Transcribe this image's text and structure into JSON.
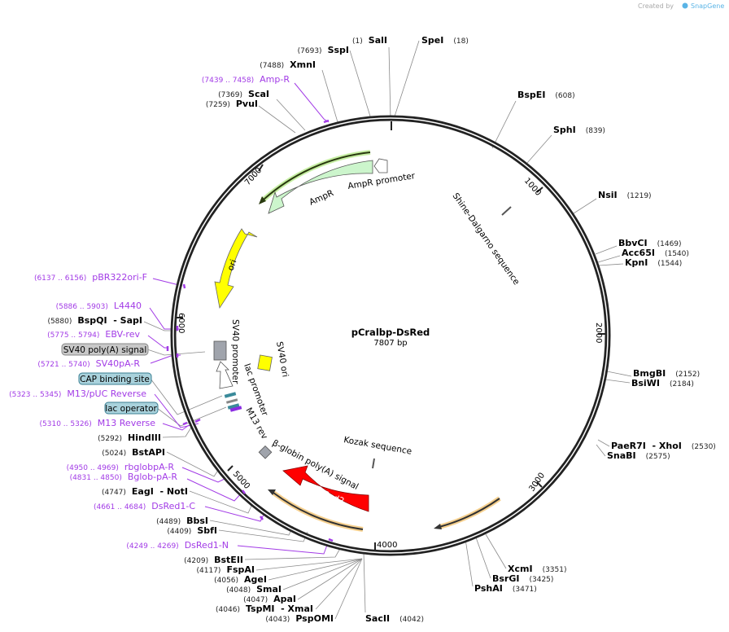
{
  "attribution": {
    "text": "Created by",
    "brand": "SnapGene"
  },
  "plasmid": {
    "name": "pCralbp-DsRed",
    "size": "7807 bp"
  },
  "ticks": [
    "1000",
    "2000",
    "3000",
    "4000",
    "5000",
    "6000",
    "7000"
  ],
  "enzymes": [
    {
      "name": "SalI",
      "position": "(1)"
    },
    {
      "name": "SpeI",
      "position": "(18)"
    },
    {
      "name": "SspI",
      "position": "(7693)"
    },
    {
      "name": "XmnI",
      "position": "(7488)"
    },
    {
      "name": "ScaI",
      "position": "(7369)"
    },
    {
      "name": "PvuI",
      "position": "(7259)"
    },
    {
      "name": "BspEI",
      "position": "(608)"
    },
    {
      "name": "SphI",
      "position": "(839)"
    },
    {
      "name": "NsiI",
      "position": "(1219)"
    },
    {
      "name": "BbvCI",
      "position": "(1469)"
    },
    {
      "name": "Acc65I",
      "position": "(1540)"
    },
    {
      "name": "KpnI",
      "position": "(1544)"
    },
    {
      "name": "BmgBI",
      "position": "(2152)"
    },
    {
      "name": "BsiWI",
      "position": "(2184)"
    },
    {
      "name": "PaeR7I  - XhoI",
      "position": "(2530)"
    },
    {
      "name": "SnaBI",
      "position": "(2575)"
    },
    {
      "name": "XcmI",
      "position": "(3351)"
    },
    {
      "name": "BsrGI",
      "position": "(3425)"
    },
    {
      "name": "PshAI",
      "position": "(3471)"
    },
    {
      "name": "SacII",
      "position": "(4042)"
    },
    {
      "name": "PspOMI",
      "position": "(4043)"
    },
    {
      "name": "TspMI  - XmaI",
      "position": "(4046)"
    },
    {
      "name": "ApaI",
      "position": "(4047)"
    },
    {
      "name": "SmaI",
      "position": "(4048)"
    },
    {
      "name": "AgeI",
      "position": "(4056)"
    },
    {
      "name": "FspAI",
      "position": "(4117)"
    },
    {
      "name": "BstEII",
      "position": "(4209)"
    },
    {
      "name": "SbfI",
      "position": "(4409)"
    },
    {
      "name": "BbsI",
      "position": "(4489)"
    },
    {
      "name": "EagI  - NotI",
      "position": "(4747)"
    },
    {
      "name": "BstAPI",
      "position": "(5024)"
    },
    {
      "name": "HindIII",
      "position": "(5292)"
    },
    {
      "name": "BspQI  - SapI",
      "position": "(5880)"
    }
  ],
  "primers": [
    {
      "name": "Amp-R",
      "range": "(7439 .. 7458)"
    },
    {
      "name": "pBR322ori-F",
      "range": "(6137 .. 6156)"
    },
    {
      "name": "L4440",
      "range": "(5886 .. 5903)"
    },
    {
      "name": "EBV-rev",
      "range": "(5775 .. 5794)"
    },
    {
      "name": "SV40pA-R",
      "range": "(5721 .. 5740)"
    },
    {
      "name": "M13/pUC Reverse",
      "range": "(5323 .. 5345)"
    },
    {
      "name": "M13 Reverse",
      "range": "(5310 .. 5326)"
    },
    {
      "name": "rbglobpA-R",
      "range": "(4950 .. 4969)"
    },
    {
      "name": "Bglob-pA-R",
      "range": "(4831 .. 4850)"
    },
    {
      "name": "DsRed1-C",
      "range": "(4661 .. 4684)"
    },
    {
      "name": "DsRed1-N",
      "range": "(4249 .. 4269)"
    }
  ],
  "boxed_features": [
    {
      "name": "SV40 poly(A) signal",
      "color": "#c8c8c8"
    },
    {
      "name": "CAP binding site",
      "color": "#a9d2dc"
    },
    {
      "name": "lac operator",
      "color": "#a9d2dc"
    }
  ],
  "features": {
    "ampr_promoter": "AmpR promoter",
    "ampr": "AmpR",
    "ori": "ori",
    "shine_dalgarno": "Shine-Dalgarno sequence",
    "sv40_promoter": "SV40 promoter",
    "sv40_ori": "SV40 ori",
    "lac_promoter": "lac promoter",
    "m13_rev": "M13 rev",
    "bglobin": "β-globin poly(A) signal",
    "kozak": "Kozak sequence",
    "dsred2": "DsRed2"
  },
  "colors": {
    "primer": "#a23be6",
    "ampr": "#ccf5cc",
    "ori": "#ffff00",
    "dsred": "#ff0000",
    "orf": "#f5c87a"
  }
}
